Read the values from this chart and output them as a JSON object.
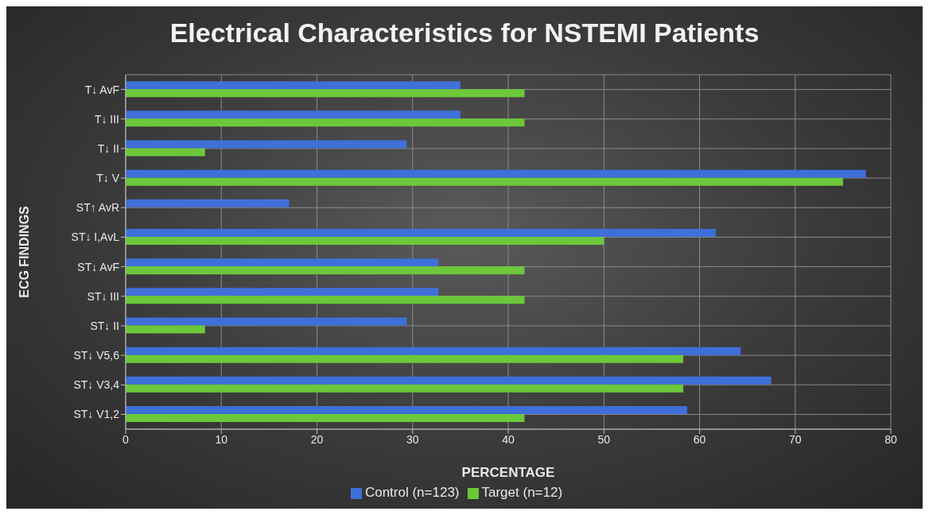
{
  "chart_data": {
    "type": "bar",
    "orientation": "horizontal",
    "title": "Electrical Characteristics for NSTEMI Patients",
    "xlabel": "PERCENTAGE",
    "ylabel": "ECG FINDINGS",
    "categories": [
      "T↓ AvF",
      "T↓ III",
      "T↓ II",
      "T↓ V",
      "ST↑ AvR",
      "ST↓ I,AvL",
      "ST↓ AvF",
      "ST↓ III",
      "ST↓ II",
      "ST↓ V5,6",
      "ST↓ V3,4",
      "ST↓ V1,2"
    ],
    "series": [
      {
        "name": "Control (n=123)",
        "color": "#3f6fd8",
        "values": [
          35,
          35,
          29.4,
          77.4,
          17.1,
          61.7,
          32.7,
          32.7,
          29.4,
          64.3,
          67.5,
          58.7
        ]
      },
      {
        "name": "Target (n=12)",
        "color": "#6cc83a",
        "values": [
          41.7,
          41.7,
          8.3,
          75,
          0,
          50,
          41.7,
          41.7,
          8.3,
          58.3,
          58.3,
          41.7
        ]
      }
    ],
    "xlim": [
      0,
      80
    ],
    "xticks": [
      0,
      10,
      20,
      30,
      40,
      50,
      60,
      70,
      80
    ],
    "grid": true,
    "legend": "bottom"
  }
}
